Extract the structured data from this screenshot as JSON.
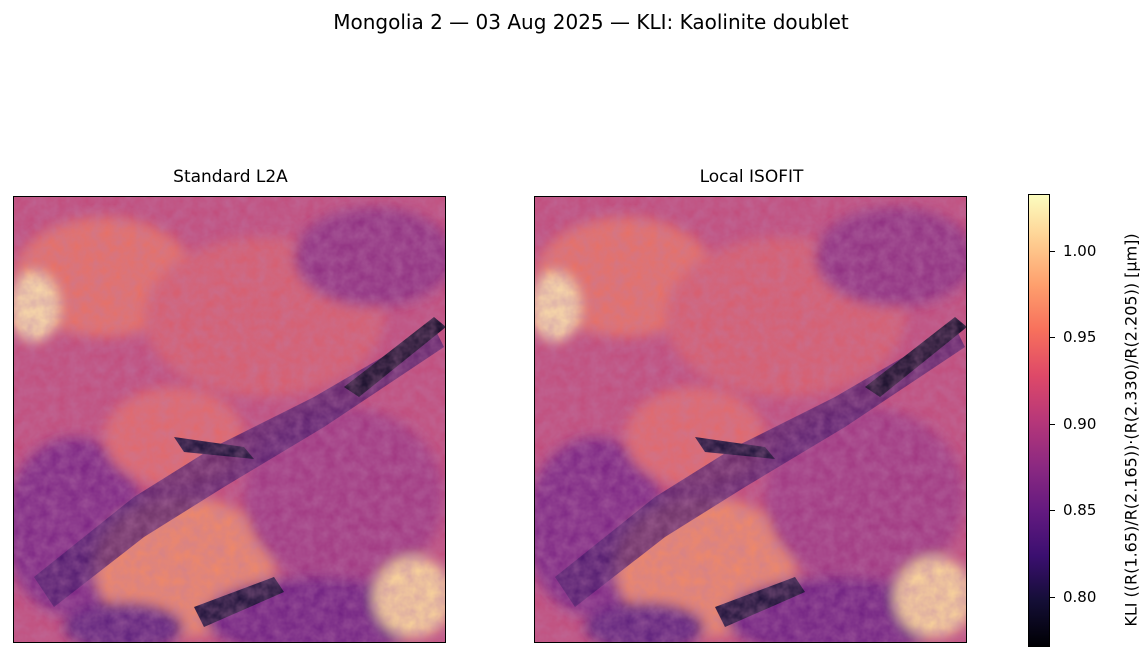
{
  "figure": {
    "title": "Mongolia 2 — 03 Aug 2025 — KLI: Kaolinite doublet"
  },
  "panels": [
    {
      "title": "Standard L2A"
    },
    {
      "title": "Local ISOFIT"
    }
  ],
  "colorbar": {
    "label": "KLI  ((R(1.65)/R(2.165))·(R(2.330)/R(2.205))  [µm])",
    "colormap": "magma",
    "range": [
      0.77,
      1.032
    ],
    "ticks": [
      "0.80",
      "0.85",
      "0.90",
      "0.95",
      "1.00"
    ],
    "tick_values": [
      0.8,
      0.85,
      0.9,
      0.95,
      1.0
    ]
  },
  "chart_data": [
    {
      "type": "heatmap",
      "title": "Standard L2A",
      "description": "Spatial map of KLI index",
      "value_range": [
        0.77,
        1.032
      ]
    },
    {
      "type": "heatmap",
      "title": "Local ISOFIT",
      "description": "Spatial map of KLI index",
      "value_range": [
        0.77,
        1.032
      ]
    }
  ]
}
